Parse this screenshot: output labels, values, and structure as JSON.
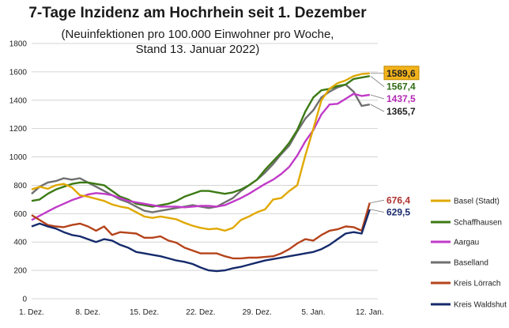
{
  "chart_data": {
    "type": "line",
    "title": "7-Tage Inzidenz am Hochrhein seit 1. Dezember",
    "subtitle_line1": "(Neuinfektionen pro 100.000 Einwohner pro Woche,",
    "subtitle_line2": "Stand 13. Januar 2022)",
    "ylim": [
      0,
      1800
    ],
    "yticks": [
      0,
      200,
      400,
      600,
      800,
      1000,
      1200,
      1400,
      1600,
      1800
    ],
    "xlim": [
      0,
      43
    ],
    "xticks": [
      {
        "x": 0,
        "label": "1. Dez."
      },
      {
        "x": 7,
        "label": "8. Dez."
      },
      {
        "x": 14,
        "label": "15. Dez."
      },
      {
        "x": 21,
        "label": "22. Dez."
      },
      {
        "x": 28,
        "label": "29. Dez."
      },
      {
        "x": 35,
        "label": "5. Jan."
      },
      {
        "x": 42,
        "label": "12. Jan."
      }
    ],
    "series": [
      {
        "name": "Baselland",
        "color": "#6f6f6f",
        "end_label": "1365,7",
        "label_color": "#222222",
        "values": [
          740,
          790,
          820,
          830,
          850,
          840,
          850,
          820,
          790,
          760,
          730,
          700,
          680,
          650,
          620,
          610,
          620,
          630,
          640,
          650,
          660,
          650,
          640,
          650,
          680,
          710,
          760,
          800,
          840,
          890,
          950,
          1020,
          1080,
          1180,
          1270,
          1330,
          1420,
          1460,
          1490,
          1510,
          1460,
          1360,
          1370
        ]
      },
      {
        "name": "Schaffhausen",
        "color": "#3c7a14",
        "end_label": "1567,4",
        "label_color": "#2e6b12",
        "values": [
          690,
          700,
          740,
          770,
          790,
          810,
          820,
          820,
          810,
          800,
          760,
          720,
          700,
          670,
          660,
          650,
          660,
          670,
          690,
          720,
          740,
          760,
          760,
          750,
          740,
          750,
          770,
          800,
          840,
          910,
          970,
          1030,
          1100,
          1190,
          1320,
          1420,
          1470,
          1480,
          1500,
          1510,
          1550,
          1560,
          1570
        ]
      },
      {
        "name": "Aargau",
        "color": "#c03ac8",
        "end_label": "1437,5",
        "label_color": "#b327b3",
        "values": [
          555,
          585,
          615,
          645,
          670,
          695,
          715,
          735,
          745,
          740,
          730,
          710,
          690,
          680,
          670,
          660,
          650,
          650,
          650,
          645,
          650,
          655,
          655,
          650,
          660,
          685,
          710,
          740,
          775,
          810,
          840,
          880,
          930,
          1010,
          1110,
          1190,
          1300,
          1370,
          1375,
          1410,
          1445,
          1430,
          1437.5
        ]
      },
      {
        "name": "Basel (Stadt)",
        "color": "#e0a800",
        "end_label": "1589,6",
        "label_color": "#222222",
        "values": [
          770,
          790,
          775,
          800,
          810,
          785,
          730,
          720,
          705,
          690,
          665,
          650,
          640,
          610,
          580,
          570,
          580,
          570,
          560,
          535,
          515,
          500,
          490,
          495,
          480,
          500,
          555,
          580,
          610,
          630,
          700,
          710,
          760,
          800,
          1010,
          1200,
          1400,
          1480,
          1520,
          1540,
          1570,
          1585,
          1589.6
        ]
      },
      {
        "name": "Kreis Lörrach",
        "color": "#b5431b",
        "end_label": "676,4",
        "label_color": "#b03232",
        "values": [
          590,
          555,
          520,
          510,
          505,
          520,
          530,
          510,
          480,
          510,
          450,
          470,
          465,
          460,
          430,
          430,
          440,
          410,
          395,
          360,
          340,
          320,
          320,
          320,
          300,
          285,
          285,
          290,
          290,
          295,
          300,
          320,
          350,
          390,
          420,
          410,
          450,
          480,
          490,
          510,
          505,
          480,
          676.4
        ]
      },
      {
        "name": "Kreis Waldshut",
        "color": "#152a6b",
        "end_label": "629,5",
        "label_color": "#1a2a6c",
        "values": [
          510,
          530,
          510,
          495,
          470,
          450,
          440,
          420,
          400,
          420,
          410,
          380,
          360,
          330,
          320,
          310,
          300,
          285,
          270,
          260,
          245,
          220,
          200,
          195,
          200,
          215,
          225,
          240,
          255,
          270,
          280,
          290,
          300,
          310,
          320,
          330,
          350,
          380,
          420,
          460,
          470,
          460,
          629.5
        ]
      }
    ]
  }
}
